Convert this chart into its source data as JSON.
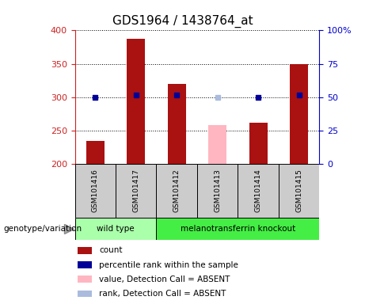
{
  "title": "GDS1964 / 1438764_at",
  "samples": [
    "GSM101416",
    "GSM101417",
    "GSM101412",
    "GSM101413",
    "GSM101414",
    "GSM101415"
  ],
  "bar_values": [
    235,
    388,
    320,
    258,
    262,
    350
  ],
  "bar_absent": [
    false,
    false,
    false,
    true,
    false,
    false
  ],
  "percentile_values": [
    50,
    52,
    52,
    50,
    50,
    52
  ],
  "percentile_absent": [
    false,
    false,
    false,
    true,
    false,
    false
  ],
  "ymin": 200,
  "ymax": 400,
  "y2min": 0,
  "y2max": 100,
  "yticks": [
    200,
    250,
    300,
    350,
    400
  ],
  "y2ticks": [
    0,
    25,
    50,
    75,
    100
  ],
  "y2ticklabels": [
    "0",
    "25",
    "50",
    "75",
    "100%"
  ],
  "bar_color_present": "#aa1111",
  "bar_color_absent": "#ffb6c1",
  "dot_color_present": "#000099",
  "dot_color_absent": "#aabbdd",
  "bg_color_plot": "#ffffff",
  "bg_color_label": "#cccccc",
  "genotype_groups": [
    {
      "label": "wild type",
      "samples": [
        0,
        1
      ],
      "color": "#aaffaa"
    },
    {
      "label": "melanotransferrin knockout",
      "samples": [
        2,
        3,
        4,
        5
      ],
      "color": "#44ee44"
    }
  ],
  "legend_items": [
    {
      "label": "count",
      "color": "#aa1111"
    },
    {
      "label": "percentile rank within the sample",
      "color": "#000099"
    },
    {
      "label": "value, Detection Call = ABSENT",
      "color": "#ffb6c1"
    },
    {
      "label": "rank, Detection Call = ABSENT",
      "color": "#aabbdd"
    }
  ],
  "genotype_label": "genotype/variation",
  "left_axis_color": "#cc2222",
  "right_axis_color": "#0000cc",
  "title_fontsize": 11
}
